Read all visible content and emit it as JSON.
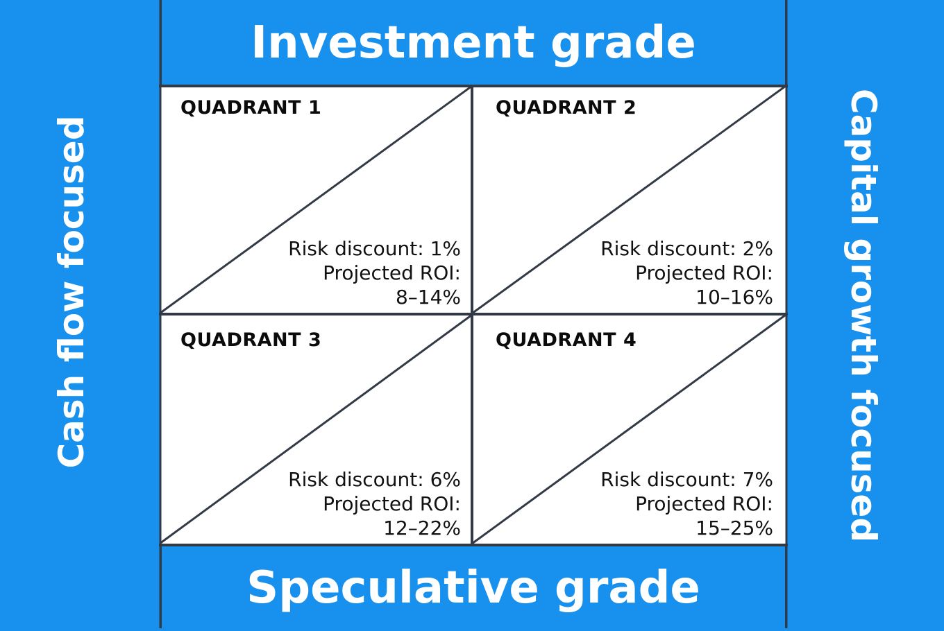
{
  "top_label": "Investment grade",
  "bottom_label": "Speculative grade",
  "left_label": "Cash flow focused",
  "right_label": "Capital growth focused",
  "quadrants": [
    {
      "title": "QUADRANT 1",
      "risk": "Risk discount: 1%",
      "roi_label": "Projected ROI:",
      "roi": "8–14%"
    },
    {
      "title": "QUADRANT 2",
      "risk": "Risk discount: 2%",
      "roi_label": "Projected ROI:",
      "roi": "10–16%"
    },
    {
      "title": "QUADRANT 3",
      "risk": "Risk discount: 6%",
      "roi_label": "Projected ROI:",
      "roi": "12–22%"
    },
    {
      "title": "QUADRANT 4",
      "risk": "Risk discount: 7%",
      "roi_label": "Projected ROI:",
      "roi": "15–25%"
    }
  ],
  "colors": {
    "background": "#1890ee",
    "lines": "#323a45",
    "cell": "#ffffff"
  }
}
